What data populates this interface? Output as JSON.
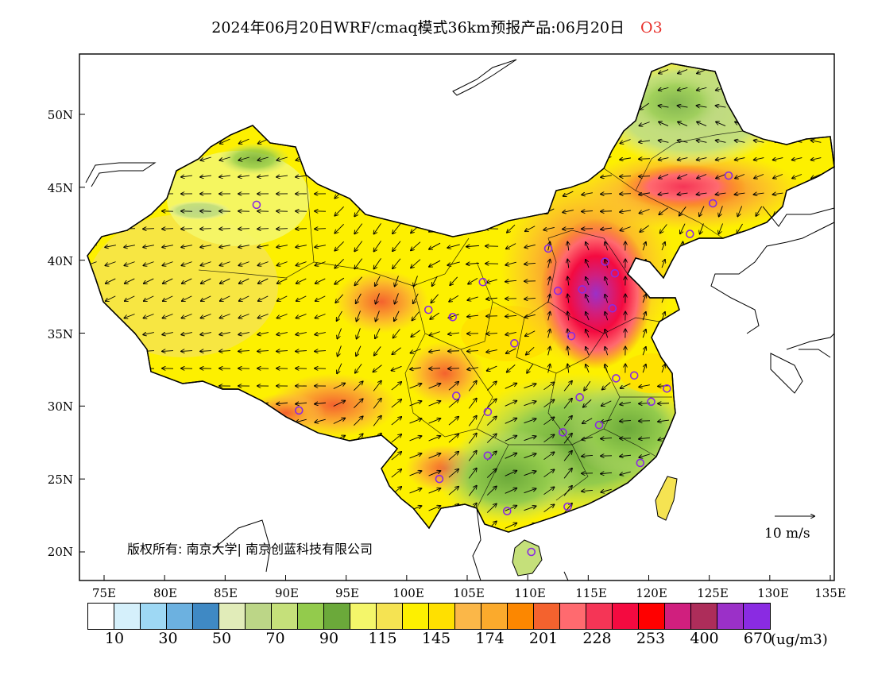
{
  "title": {
    "text": "2024年06月20日WRF/cmaq模式36km预报产品:06月20日",
    "species": "O3"
  },
  "copyright": "版权所有: 南京大学| 南京创蓝科技有限公司",
  "wind_reference": "10 m/s",
  "axes": {
    "x_ticks": [
      "75E",
      "80E",
      "85E",
      "90E",
      "95E",
      "100E",
      "105E",
      "110E",
      "115E",
      "120E",
      "125E",
      "130E",
      "135E"
    ],
    "y_ticks": [
      "50N",
      "45N",
      "40N",
      "35N",
      "30N",
      "25N",
      "20N"
    ],
    "lon_range": [
      73,
      135
    ],
    "lat_range": [
      18,
      54
    ]
  },
  "legend": {
    "colors": [
      "#ffffff",
      "#d5f0fb",
      "#9ed8f4",
      "#6cb1e0",
      "#3f89c4",
      "#e1ecb9",
      "#bcd687",
      "#c5e07a",
      "#93cb4c",
      "#6ba93a",
      "#f4f66a",
      "#f5e352",
      "#fdf000",
      "#ffe000",
      "#fbb748",
      "#fbaa2c",
      "#fc8700",
      "#f4622e",
      "#ff6a6f",
      "#f53556",
      "#f40a40",
      "#ff0000",
      "#d01f7e",
      "#ad2d5a",
      "#9b30c8",
      "#8a2be2"
    ],
    "labels": [
      "10",
      "30",
      "50",
      "70",
      "90",
      "115",
      "145",
      "174",
      "201",
      "228",
      "253",
      "400",
      "670"
    ],
    "unit": "(ug/m3)"
  },
  "map": {
    "ocean": "#ffffff",
    "border": "#000000",
    "stations": [
      [
        87.6,
        43.8
      ],
      [
        91.1,
        29.7
      ],
      [
        101.8,
        36.6
      ],
      [
        103.8,
        36.1
      ],
      [
        104.1,
        30.7
      ],
      [
        102.7,
        25.0
      ],
      [
        106.3,
        38.5
      ],
      [
        106.7,
        29.6
      ],
      [
        106.7,
        26.6
      ],
      [
        108.3,
        22.8
      ],
      [
        108.9,
        34.3
      ],
      [
        110.3,
        20.0
      ],
      [
        111.7,
        40.8
      ],
      [
        112.5,
        37.9
      ],
      [
        112.9,
        28.2
      ],
      [
        113.3,
        23.1
      ],
      [
        113.6,
        34.8
      ],
      [
        114.3,
        30.6
      ],
      [
        114.5,
        38.0
      ],
      [
        115.9,
        28.7
      ],
      [
        116.4,
        39.9
      ],
      [
        117.0,
        36.7
      ],
      [
        117.2,
        39.1
      ],
      [
        117.3,
        31.9
      ],
      [
        118.8,
        32.1
      ],
      [
        119.3,
        26.1
      ],
      [
        120.2,
        30.3
      ],
      [
        121.5,
        31.2
      ],
      [
        123.4,
        41.8
      ],
      [
        125.3,
        43.9
      ],
      [
        126.6,
        45.8
      ]
    ]
  }
}
